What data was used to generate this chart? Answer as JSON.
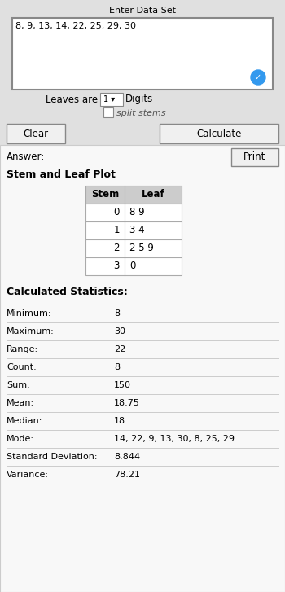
{
  "title_input": "Enter Data Set",
  "input_data": "8, 9, 13, 14, 22, 25, 29, 30",
  "leaves_label": "Leaves are",
  "digits_label": "Digits",
  "split_stems_label": "split stems",
  "clear_btn": "Clear",
  "calculate_btn": "Calculate",
  "answer_label": "Answer:",
  "print_btn": "Print",
  "plot_title": "Stem and Leaf Plot",
  "stem_header": "Stem",
  "leaf_header": "Leaf",
  "stems": [
    "0",
    "1",
    "2",
    "3"
  ],
  "leaves": [
    "8 9",
    "3 4",
    "2 5 9",
    "0"
  ],
  "stats_title": "Calculated Statistics:",
  "stats": [
    [
      "Minimum:",
      "8"
    ],
    [
      "Maximum:",
      "30"
    ],
    [
      "Range:",
      "22"
    ],
    [
      "Count:",
      "8"
    ],
    [
      "Sum:",
      "150"
    ],
    [
      "Mean:",
      "18.75"
    ],
    [
      "Median:",
      "18"
    ],
    [
      "Mode:",
      "14, 22, 9, 13, 30, 8, 25, 29"
    ],
    [
      "Standard Deviation:",
      "8.844"
    ],
    [
      "Variance:",
      "78.21"
    ]
  ],
  "bg_color": "#e0e0e0",
  "white": "#ffffff",
  "text_color": "#000000",
  "border_color": "#888888",
  "table_header_bg": "#cccccc",
  "table_border": "#aaaaaa",
  "button_bg": "#f0f0f0",
  "answer_bg": "#f8f8f8",
  "blue_check": "#3399ee",
  "dropdown_bg": "#ffffff",
  "line_color": "#cccccc"
}
